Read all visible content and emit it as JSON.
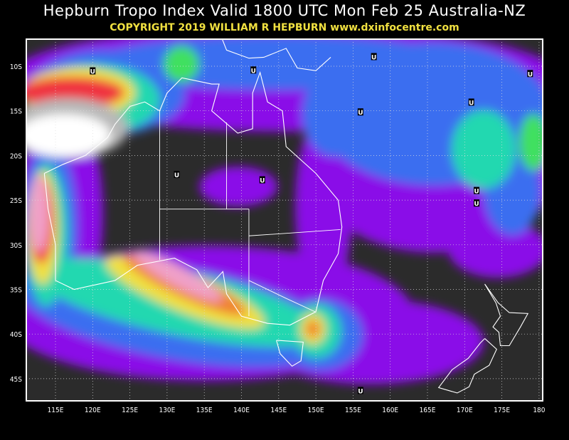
{
  "header": {
    "title": "Hepburn Tropo Index Valid 1800 UTC Mon Feb 25 Australia-NZ",
    "subtitle": "COPYRIGHT 2019   WILLIAM R HEPBURN   www.dxinfocentre.com"
  },
  "map": {
    "region": "Australia-NZ",
    "lon_labels": [
      "115E",
      "120E",
      "125E",
      "130E",
      "135E",
      "140E",
      "145E",
      "150E",
      "155E",
      "160E",
      "165E",
      "170E",
      "175E",
      "180"
    ],
    "lat_labels": [
      "10S",
      "15S",
      "20S",
      "25S",
      "30S",
      "35S",
      "40S",
      "45S"
    ],
    "colors": {
      "background": "#2b2b2b",
      "blue": "#3a6ef0",
      "purple": "#8a10e8",
      "teal": "#20d8b0",
      "green": "#40e060",
      "yellow": "#f0e040",
      "orange": "#f08030",
      "red": "#f03040",
      "pink": "#f0a0c8",
      "gray": "#b8b8b8",
      "white": "#ffffff"
    },
    "markers": [
      {
        "label": "U",
        "lon": 120.0,
        "lat": -10.6
      },
      {
        "label": "U",
        "lon": 141.6,
        "lat": -10.5
      },
      {
        "label": "U",
        "lon": 157.8,
        "lat": -9.0
      },
      {
        "label": "U",
        "lon": 178.8,
        "lat": -10.9
      },
      {
        "label": "U",
        "lon": 156.0,
        "lat": -15.2
      },
      {
        "label": "U",
        "lon": 170.9,
        "lat": -14.1
      },
      {
        "label": "U",
        "lon": 131.3,
        "lat": -22.2
      },
      {
        "label": "U",
        "lon": 142.8,
        "lat": -22.8
      },
      {
        "label": "U",
        "lon": 171.6,
        "lat": -24.0
      },
      {
        "label": "U",
        "lon": 171.6,
        "lat": -25.4
      },
      {
        "label": "U",
        "lon": 156.0,
        "lat": -46.4
      }
    ]
  }
}
